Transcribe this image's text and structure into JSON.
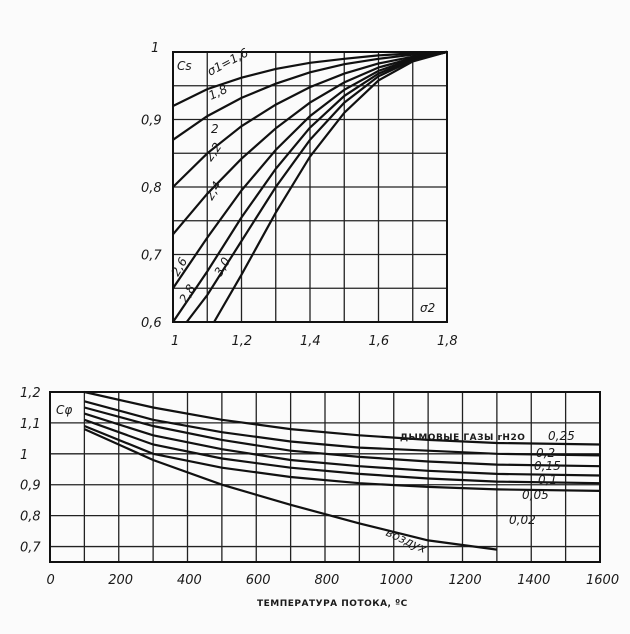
{
  "chart_data": [
    {
      "type": "line",
      "ylabel": "Cs",
      "xlabel": "σ2",
      "top_y_label": "1",
      "xlim": [
        1.0,
        1.8
      ],
      "ylim": [
        0.6,
        1.0
      ],
      "x_ticks": [
        "1",
        "1,2",
        "1,4",
        "1,6",
        "1,8"
      ],
      "y_ticks": [
        "0,6",
        "0,7",
        "0,8",
        "0,9"
      ],
      "grid": true,
      "series": [
        {
          "name": "σ1=1,6",
          "x": [
            1.0,
            1.1,
            1.2,
            1.3,
            1.4,
            1.5,
            1.6,
            1.7,
            1.8
          ],
          "y": [
            0.92,
            0.945,
            0.962,
            0.975,
            0.984,
            0.99,
            0.995,
            0.998,
            1.0
          ]
        },
        {
          "name": "1,8",
          "x": [
            1.0,
            1.1,
            1.2,
            1.3,
            1.4,
            1.5,
            1.6,
            1.7,
            1.8
          ],
          "y": [
            0.87,
            0.905,
            0.932,
            0.953,
            0.97,
            0.982,
            0.99,
            0.996,
            1.0
          ]
        },
        {
          "name": "2",
          "x": [
            1.0,
            1.1,
            1.2,
            1.3,
            1.4,
            1.5,
            1.6,
            1.7,
            1.8
          ],
          "y": [
            0.8,
            0.85,
            0.89,
            0.922,
            0.948,
            0.968,
            0.983,
            0.993,
            1.0
          ]
        },
        {
          "name": "2,2",
          "x": [
            1.0,
            1.1,
            1.2,
            1.3,
            1.4,
            1.5,
            1.6,
            1.7,
            1.8
          ],
          "y": [
            0.73,
            0.79,
            0.842,
            0.887,
            0.925,
            0.955,
            0.977,
            0.991,
            1.0
          ]
        },
        {
          "name": "2,4",
          "x": [
            1.0,
            1.1,
            1.2,
            1.3,
            1.4,
            1.5,
            1.6,
            1.7,
            1.8
          ],
          "y": [
            0.65,
            0.725,
            0.795,
            0.855,
            0.905,
            0.944,
            0.972,
            0.99,
            1.0
          ]
        },
        {
          "name": "2,6",
          "x": [
            1.0,
            1.1,
            1.2,
            1.3,
            1.4,
            1.5,
            1.6,
            1.7,
            1.8
          ],
          "y": [
            0.6,
            0.675,
            0.755,
            0.827,
            0.888,
            0.935,
            0.968,
            0.989,
            1.0
          ]
        },
        {
          "name": "2,8",
          "x": [
            1.04,
            1.1,
            1.2,
            1.3,
            1.4,
            1.5,
            1.6,
            1.7,
            1.8
          ],
          "y": [
            0.6,
            0.64,
            0.72,
            0.8,
            0.87,
            0.925,
            0.964,
            0.988,
            1.0
          ]
        },
        {
          "name": "3,0",
          "x": [
            1.12,
            1.2,
            1.3,
            1.4,
            1.5,
            1.6,
            1.7,
            1.8
          ],
          "y": [
            0.6,
            0.67,
            0.762,
            0.845,
            0.91,
            0.958,
            0.986,
            1.0
          ]
        }
      ],
      "curve_labels": [
        "σ1=1,6",
        "1,8",
        "2",
        "2,2",
        "2,4",
        "2,6",
        "2,8",
        "3,0"
      ]
    },
    {
      "type": "line",
      "ylabel": "Cφ",
      "xlabel": "ТЕМПЕРАТУРА ПОТОКА, ºС",
      "xlim": [
        0,
        1600
      ],
      "ylim": [
        0.65,
        1.2
      ],
      "x_ticks": [
        "0",
        "200",
        "400",
        "600",
        "800",
        "1000",
        "1200",
        "1400",
        "1600"
      ],
      "y_ticks": [
        "0,7",
        "0,8",
        "0,9",
        "1",
        "1,1",
        "1,2"
      ],
      "grid": true,
      "annotation": "ДЫМОВЫЕ ГАЗЫ rH2O",
      "series": [
        {
          "name": "0,25",
          "x": [
            100,
            300,
            500,
            700,
            900,
            1100,
            1300,
            1600
          ],
          "y": [
            1.2,
            1.15,
            1.11,
            1.08,
            1.06,
            1.045,
            1.035,
            1.03
          ]
        },
        {
          "name": "0,2",
          "x": [
            100,
            300,
            500,
            700,
            900,
            1100,
            1300,
            1600
          ],
          "y": [
            1.17,
            1.11,
            1.07,
            1.04,
            1.02,
            1.01,
            1.0,
            0.995
          ]
        },
        {
          "name": "0,15",
          "x": [
            100,
            300,
            500,
            700,
            900,
            1100,
            1300,
            1600
          ],
          "y": [
            1.15,
            1.09,
            1.045,
            1.01,
            0.99,
            0.975,
            0.965,
            0.96
          ]
        },
        {
          "name": "0,1",
          "x": [
            100,
            300,
            500,
            700,
            900,
            1100,
            1300,
            1600
          ],
          "y": [
            1.13,
            1.06,
            1.015,
            0.98,
            0.96,
            0.945,
            0.935,
            0.93
          ]
        },
        {
          "name": "0,05",
          "x": [
            100,
            300,
            500,
            700,
            900,
            1100,
            1300,
            1600
          ],
          "y": [
            1.11,
            1.03,
            0.985,
            0.955,
            0.935,
            0.92,
            0.91,
            0.905
          ]
        },
        {
          "name": "0,02",
          "x": [
            100,
            300,
            500,
            700,
            900,
            1100,
            1300,
            1600
          ],
          "y": [
            1.09,
            1.0,
            0.955,
            0.925,
            0.905,
            0.893,
            0.885,
            0.88
          ]
        },
        {
          "name": "воздух",
          "x": [
            100,
            300,
            500,
            700,
            900,
            1100,
            1300
          ],
          "y": [
            1.08,
            0.98,
            0.9,
            0.835,
            0.775,
            0.72,
            0.69
          ]
        }
      ],
      "curve_labels": [
        "0,25",
        "0,2",
        "0,15",
        "0,1",
        "0,05",
        "0,02",
        "воздух"
      ]
    }
  ]
}
